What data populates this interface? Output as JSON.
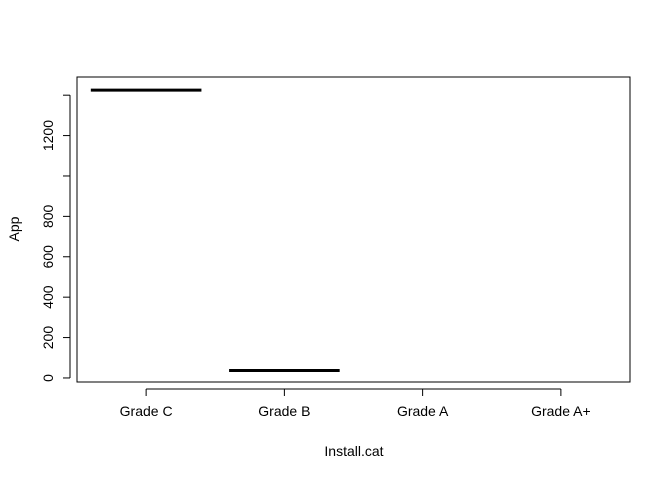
{
  "chart_data": {
    "type": "box",
    "title": "",
    "xlabel": "Install.cat",
    "ylabel": "App",
    "categories": [
      "Grade C",
      "Grade B",
      "Grade A",
      "Grade A+"
    ],
    "medians": [
      1425,
      37,
      null,
      null
    ],
    "ylim": [
      -20,
      1490
    ],
    "yticks": [
      0,
      200,
      400,
      600,
      800,
      1000,
      1200,
      1400
    ],
    "ytick_labels": [
      "0",
      "200",
      "400",
      "600",
      "800",
      "",
      "1200",
      ""
    ],
    "grid": false,
    "legend": "none"
  }
}
